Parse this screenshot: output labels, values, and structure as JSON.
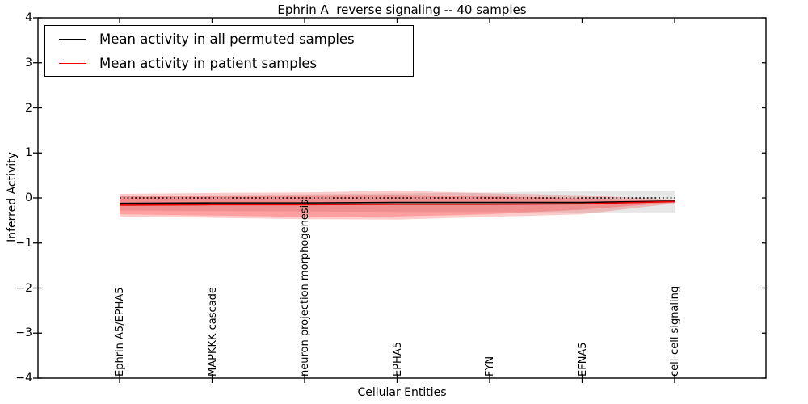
{
  "title": "Ephrin A  reverse signaling -- 40 samples",
  "legend": {
    "entries": [
      {
        "label": "Mean activity in all permuted samples",
        "color": "#000000"
      },
      {
        "label": "Mean activity in patient samples",
        "color": "#ff0000"
      }
    ],
    "position": "upper left"
  },
  "chart_data": {
    "type": "line",
    "title": "Ephrin A  reverse signaling -- 40 samples",
    "xlabel": "Cellular Entities",
    "ylabel": "Inferred Activity",
    "ylim": [
      -4,
      4
    ],
    "yticks": [
      4,
      3,
      2,
      1,
      0,
      -1,
      -2,
      -3,
      -4
    ],
    "grid": false,
    "legend_position": "upper left",
    "categories": [
      "Ephrin A5/EPHA5",
      "MAPKKK cascade",
      "neuron projection morphogenesis",
      "EPHA5",
      "FYN",
      "EFNA5",
      "cell-cell signaling"
    ],
    "series": [
      {
        "name": "Zero reference line",
        "color": "#000000",
        "style": "dotted",
        "values": [
          0,
          0,
          0,
          0,
          0,
          0,
          0
        ]
      },
      {
        "name": "Mean activity in all permuted samples",
        "color": "#000000",
        "style": "solid",
        "values": [
          -0.12,
          -0.11,
          -0.11,
          -0.1,
          -0.1,
          -0.1,
          -0.07
        ]
      },
      {
        "name": "Mean activity in patient samples",
        "color": "#e80000",
        "style": "solid",
        "values": [
          -0.16,
          -0.15,
          -0.15,
          -0.14,
          -0.14,
          -0.13,
          -0.08
        ]
      }
    ],
    "bands": [
      {
        "name": "permuted samples spread",
        "color": "rgba(110,110,110,0.17)",
        "upper": [
          0.05,
          0.06,
          0.08,
          0.1,
          0.12,
          0.15,
          0.16
        ],
        "lower": [
          -0.28,
          -0.29,
          -0.3,
          -0.31,
          -0.31,
          -0.32,
          -0.32
        ]
      },
      {
        "name": "patient samples spread outer",
        "color": "rgba(255,0,0,0.20)",
        "upper": [
          0.09,
          0.11,
          0.12,
          0.16,
          0.1,
          0.06,
          -0.04
        ],
        "lower": [
          -0.41,
          -0.44,
          -0.47,
          -0.48,
          -0.42,
          -0.36,
          -0.12
        ]
      },
      {
        "name": "patient samples spread inner",
        "color": "rgba(255,0,0,0.22)",
        "upper": [
          0.04,
          0.05,
          0.06,
          0.07,
          0.04,
          -0.01,
          -0.06
        ],
        "lower": [
          -0.36,
          -0.39,
          -0.42,
          -0.41,
          -0.36,
          -0.26,
          -0.1
        ]
      }
    ]
  }
}
